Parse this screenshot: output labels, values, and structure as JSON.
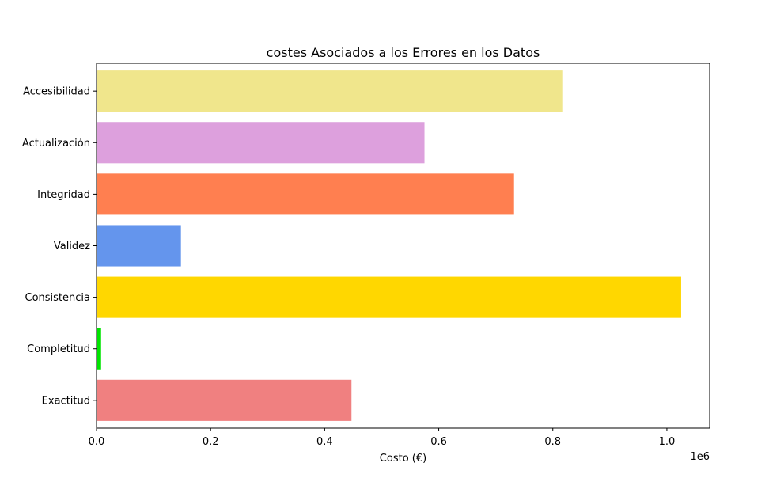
{
  "chart_data": {
    "type": "bar",
    "orientation": "horizontal",
    "title": "costes Asociados a los Errores en los Datos",
    "xlabel": "Costo (€)",
    "ylabel": "",
    "x_scale_label": "1e6",
    "xlim": [
      0,
      1075000
    ],
    "x_ticks": [
      0,
      200000,
      400000,
      600000,
      800000,
      1000000
    ],
    "x_tick_labels": [
      "0.0",
      "0.2",
      "0.4",
      "0.6",
      "0.8",
      "1.0"
    ],
    "grid": false,
    "categories": [
      "Exactitud",
      "Completitud",
      "Consistencia",
      "Validez",
      "Integridad",
      "Actualización",
      "Accesibilidad"
    ],
    "values": [
      447000,
      8000,
      1025000,
      148000,
      732000,
      575000,
      818000
    ],
    "colors": [
      "#f08080",
      "#00e400",
      "#ffd700",
      "#6495ed",
      "#ff7f50",
      "#dda0dd",
      "#f0e68c"
    ]
  }
}
